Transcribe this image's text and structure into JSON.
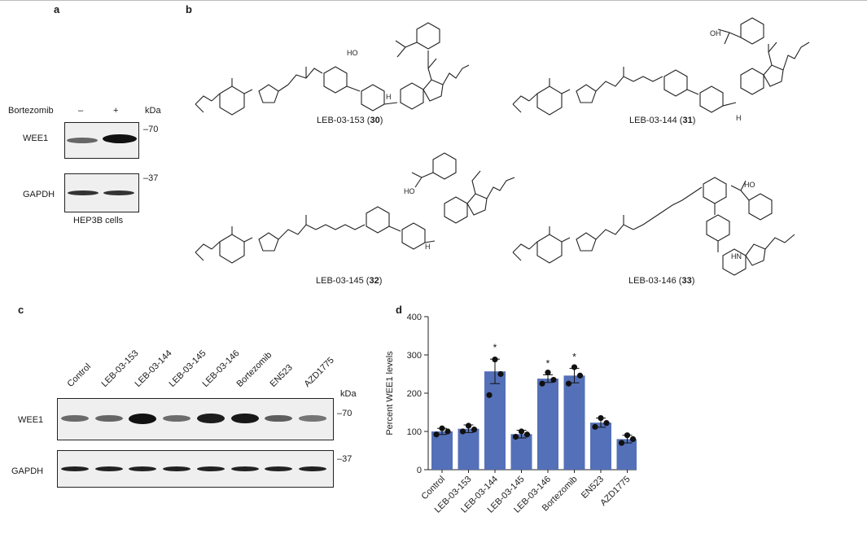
{
  "panels": {
    "a": {
      "letter": "a",
      "treatment_label": "Bortezomib",
      "minus": "–",
      "plus": "+",
      "kda_label": "kDa",
      "blots": [
        {
          "protein": "WEE1",
          "marker": "–70"
        },
        {
          "protein": "GAPDH",
          "marker": "–37"
        }
      ],
      "cell_line": "HEP3B cells"
    },
    "b": {
      "letter": "b",
      "compounds": [
        {
          "name": "LEB-03-153",
          "number": "30"
        },
        {
          "name": "LEB-03-144",
          "number": "31"
        },
        {
          "name": "LEB-03-145",
          "number": "32"
        },
        {
          "name": "LEB-03-146",
          "number": "33"
        }
      ],
      "atom_labels": {
        "ho": "HO",
        "oh": "OH",
        "n": "N",
        "o": "O",
        "h": "H",
        "nh": "NH",
        "hn": "HN"
      }
    },
    "c": {
      "letter": "c",
      "lanes": [
        "Control",
        "LEB-03-153",
        "LEB-03-144",
        "LEB-03-145",
        "LEB-03-146",
        "Bortezomib",
        "EN523",
        "AZD1775"
      ],
      "kda_label": "kDa",
      "blots": [
        {
          "protein": "WEE1",
          "marker": "–70"
        },
        {
          "protein": "GAPDH",
          "marker": "–37"
        }
      ]
    },
    "d": {
      "letter": "d",
      "significance_mark": "*"
    }
  },
  "chart_data": {
    "type": "bar",
    "title": "",
    "xlabel": "",
    "ylabel": "Percent WEE1 levels",
    "ylim": [
      0,
      400
    ],
    "yticks": [
      "0",
      "100",
      "200",
      "300",
      "400"
    ],
    "categories": [
      "Control",
      "LEB-03-153",
      "LEB-03-144",
      "LEB-03-145",
      "LEB-03-146",
      "Bortezomib",
      "EN523",
      "AZD1775"
    ],
    "values": [
      100,
      107,
      257,
      93,
      238,
      246,
      123,
      80
    ],
    "sem": [
      8,
      10,
      32,
      10,
      10,
      19,
      12,
      10
    ],
    "points": [
      [
        92,
        100,
        108
      ],
      [
        100,
        105,
        115
      ],
      [
        195,
        250,
        288
      ],
      [
        86,
        92,
        100
      ],
      [
        225,
        235,
        254
      ],
      [
        225,
        246,
        268
      ],
      [
        112,
        122,
        135
      ],
      [
        70,
        80,
        90
      ]
    ],
    "significant": [
      false,
      false,
      true,
      false,
      true,
      true,
      false,
      false
    ],
    "bar_color": "#5470b8",
    "grid": false
  }
}
